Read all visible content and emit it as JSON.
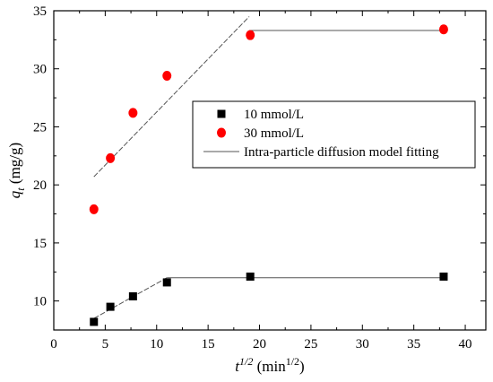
{
  "chart_data": {
    "type": "scatter",
    "xlim": [
      0,
      42
    ],
    "ylim": [
      7.5,
      35
    ],
    "xticks": [
      0,
      5,
      10,
      15,
      20,
      25,
      30,
      35,
      40
    ],
    "yticks": [
      10,
      15,
      20,
      25,
      30,
      35
    ],
    "xlabel": {
      "base": "t",
      "sup": "1/2",
      "unit_open": " (min",
      "unit_sup": "1/2",
      "unit_close": ")"
    },
    "ylabel": {
      "base": "q",
      "sub": "t",
      "unit": " (mg/g)"
    },
    "legend_position": "center-right",
    "series": [
      {
        "name": "10 mmol/L",
        "marker": "square",
        "color": "#000000",
        "points": [
          [
            3.9,
            8.2
          ],
          [
            5.5,
            9.5
          ],
          [
            7.7,
            10.4
          ],
          [
            11.0,
            11.6
          ],
          [
            19.1,
            12.1
          ],
          [
            37.9,
            12.1
          ]
        ]
      },
      {
        "name": "30 mmol/L",
        "marker": "circle",
        "color": "#ff0000",
        "points": [
          [
            3.9,
            17.9
          ],
          [
            5.5,
            22.3
          ],
          [
            7.7,
            26.2
          ],
          [
            11.0,
            29.4
          ],
          [
            19.1,
            32.9
          ],
          [
            37.9,
            33.4
          ]
        ]
      }
    ],
    "fit_lines": [
      {
        "style": "dashed",
        "points": [
          [
            3.9,
            8.5
          ],
          [
            11.0,
            12.0
          ]
        ]
      },
      {
        "style": "solid",
        "points": [
          [
            11.0,
            12.0
          ],
          [
            37.9,
            12.0
          ]
        ]
      },
      {
        "style": "dashed",
        "points": [
          [
            3.9,
            20.7
          ],
          [
            19.0,
            34.5
          ]
        ]
      },
      {
        "style": "solid",
        "points": [
          [
            19.0,
            33.3
          ],
          [
            37.9,
            33.3
          ]
        ]
      }
    ],
    "fit_legend_label": "Intra-particle diffusion model fitting",
    "fit_color": "#555555"
  }
}
